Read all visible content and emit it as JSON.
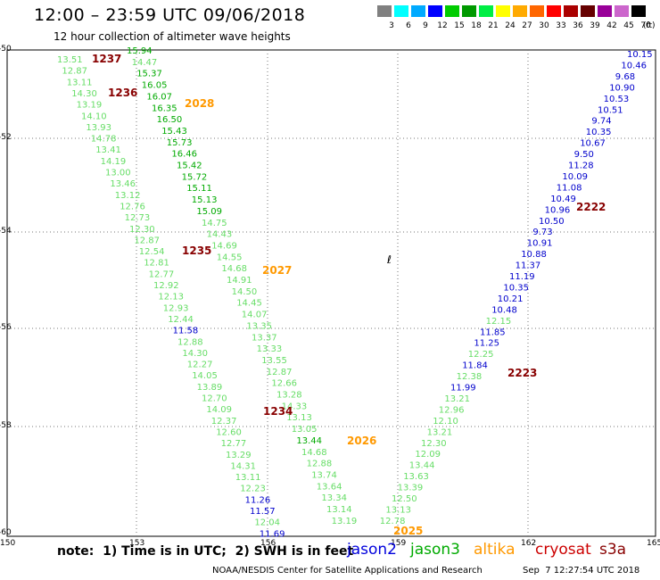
{
  "header": {
    "title": "12:00 – 23:59 UTC 09/06/2018",
    "subtitle": "12 hour collection of altimeter wave heights"
  },
  "legend": {
    "colors": [
      "#808080",
      "#00ffff",
      "#00aaff",
      "#0000ff",
      "#00cc00",
      "#009900",
      "#00ee44",
      "#ffff00",
      "#ffaa00",
      "#ff6600",
      "#ff0000",
      "#aa0000",
      "#660000",
      "#990099",
      "#cc66cc",
      "#000000"
    ],
    "labels": [
      "3",
      "6",
      "9",
      "12",
      "15",
      "18",
      "21",
      "24",
      "27",
      "30",
      "33",
      "36",
      "39",
      "42",
      "45",
      "70"
    ],
    "unit": "(ft)"
  },
  "axes": {
    "lat_labels": [
      "-50",
      "-52",
      "-54",
      "-56",
      "-58",
      "-60"
    ],
    "lon_labels": [
      "150",
      "153",
      "156",
      "159",
      "162",
      "165"
    ]
  },
  "colors": {
    "light_green": "#66dd66",
    "green": "#00aa00",
    "blue": "#0000cc",
    "dark_red": "#880000",
    "orange": "#ff9900"
  },
  "time_labels": [
    {
      "text": "1237",
      "color": "dark_red"
    },
    {
      "text": "1236",
      "color": "dark_red"
    },
    {
      "text": "1235",
      "color": "dark_red"
    },
    {
      "text": "1234",
      "color": "dark_red"
    },
    {
      "text": "2028",
      "color": "orange"
    },
    {
      "text": "2027",
      "color": "orange"
    },
    {
      "text": "2026",
      "color": "orange"
    },
    {
      "text": "2025",
      "color": "orange"
    },
    {
      "text": "2222",
      "color": "dark_red"
    },
    {
      "text": "2223",
      "color": "dark_red"
    }
  ],
  "track_a": [
    "13.51",
    "12.87",
    "13.11",
    "14.30",
    "13.19",
    "14.10",
    "13.93",
    "14.78",
    "13.41",
    "14.19",
    "13.00",
    "13.46",
    "13.12",
    "12.76",
    "12.73",
    "12.30",
    "12.87",
    "12.54",
    "12.81",
    "12.77",
    "12.92",
    "12.13",
    "12.93",
    "12.44",
    "11.58",
    "12.88",
    "14.30",
    "12.27",
    "14.05",
    "13.89",
    "12.70",
    "14.09",
    "12.37",
    "12.60",
    "12.77",
    "13.29",
    "14.31",
    "13.11",
    "12.23",
    "11.26",
    "11.57",
    "12.04",
    "11.69"
  ],
  "track_a_colors": [
    "light_green",
    "light_green",
    "light_green",
    "light_green",
    "light_green",
    "light_green",
    "light_green",
    "light_green",
    "light_green",
    "light_green",
    "light_green",
    "light_green",
    "light_green",
    "light_green",
    "light_green",
    "light_green",
    "light_green",
    "light_green",
    "light_green",
    "light_green",
    "light_green",
    "light_green",
    "light_green",
    "light_green",
    "blue",
    "light_green",
    "light_green",
    "light_green",
    "light_green",
    "light_green",
    "light_green",
    "light_green",
    "light_green",
    "light_green",
    "light_green",
    "light_green",
    "light_green",
    "light_green",
    "light_green",
    "blue",
    "blue",
    "light_green",
    "blue"
  ],
  "track_b": [
    "15.94",
    "14.47",
    "15.37",
    "16.05",
    "16.07",
    "16.35",
    "16.50",
    "15.43",
    "15.73",
    "16.46",
    "15.42",
    "15.72",
    "15.11",
    "15.13",
    "15.09",
    "14.75",
    "14.43",
    "14.69",
    "14.55",
    "14.68",
    "14.91",
    "14.50",
    "14.45",
    "14.07",
    "13.35",
    "13.37",
    "13.33",
    "13.55",
    "12.87",
    "12.66",
    "13.28",
    "14.33",
    "13.13",
    "13.05",
    "13.44",
    "14.68",
    "12.88",
    "13.74",
    "13.64",
    "13.34",
    "13.14",
    "13.19"
  ],
  "track_b_colors": [
    "green",
    "light_green",
    "green",
    "green",
    "green",
    "green",
    "green",
    "green",
    "green",
    "green",
    "green",
    "green",
    "green",
    "green",
    "green",
    "light_green",
    "light_green",
    "light_green",
    "light_green",
    "light_green",
    "light_green",
    "light_green",
    "light_green",
    "light_green",
    "light_green",
    "light_green",
    "light_green",
    "light_green",
    "light_green",
    "light_green",
    "light_green",
    "light_green",
    "light_green",
    "light_green",
    "green",
    "light_green",
    "light_green",
    "light_green",
    "light_green",
    "light_green",
    "light_green",
    "light_green"
  ],
  "track_c": [
    "10.15",
    "10.46",
    "9.68",
    "10.90",
    "10.53",
    "10.51",
    "9.74",
    "10.35",
    "10.67",
    "9.50",
    "11.28",
    "10.09",
    "11.08",
    "10.49",
    "10.96",
    "10.50",
    "9.73",
    "10.91",
    "10.88",
    "11.37",
    "11.19",
    "10.35",
    "10.21",
    "10.48",
    "12.15",
    "11.85",
    "11.25",
    "12.25",
    "11.84",
    "12.38",
    "11.99",
    "13.21",
    "12.96",
    "12.10",
    "13.21",
    "12.30",
    "12.09",
    "13.44",
    "13.63",
    "13.39",
    "12.50",
    "13.13",
    "12.78"
  ],
  "track_c_colors": [
    "blue",
    "blue",
    "blue",
    "blue",
    "blue",
    "blue",
    "blue",
    "blue",
    "blue",
    "blue",
    "blue",
    "blue",
    "blue",
    "blue",
    "blue",
    "blue",
    "blue",
    "blue",
    "blue",
    "blue",
    "blue",
    "blue",
    "blue",
    "blue",
    "light_green",
    "blue",
    "blue",
    "light_green",
    "blue",
    "light_green",
    "blue",
    "light_green",
    "light_green",
    "light_green",
    "light_green",
    "light_green",
    "light_green",
    "light_green",
    "light_green",
    "light_green",
    "light_green",
    "light_green",
    "light_green"
  ],
  "footer": {
    "note": "note:  1) Time is in UTC;  2) SWH is in feet",
    "sats": [
      {
        "name": "jason2",
        "color": "#0000dd"
      },
      {
        "name": "jason3",
        "color": "#00aa00"
      },
      {
        "name": "altika",
        "color": "#ff9900"
      },
      {
        "name": "cryosat",
        "color": "#cc0000"
      },
      {
        "name": "s3a",
        "color": "#880000"
      }
    ],
    "credit": "NOAA/NESDIS Center for Satellite Applications and Research",
    "timestamp": "Sep  7 12:27:54 UTC 2018"
  }
}
